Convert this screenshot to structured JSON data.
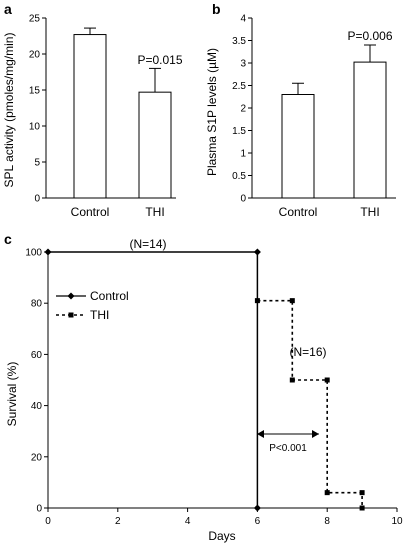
{
  "chart_data": [
    {
      "panel": "a",
      "type": "bar",
      "categories": [
        "Control",
        "THI"
      ],
      "values": [
        22.7,
        14.7
      ],
      "errors": [
        0.9,
        3.3
      ],
      "ylabel": "SPL activity (pmoles/mg/min)",
      "ylim": [
        0,
        25
      ],
      "yticks": [
        "0",
        "5",
        "10",
        "15",
        "20",
        "25"
      ],
      "annotations": [
        "P=0.015"
      ]
    },
    {
      "panel": "b",
      "type": "bar",
      "categories": [
        "Control",
        "THI"
      ],
      "values": [
        2.3,
        3.02
      ],
      "errors": [
        0.25,
        0.38
      ],
      "ylabel": "Plasma S1P levels (µM)",
      "ylim": [
        0,
        4
      ],
      "yticks": [
        "0",
        "0.5",
        "1",
        "1.5",
        "2",
        "2.5",
        "3",
        "3.5",
        "4"
      ],
      "annotations": [
        "P=0.006"
      ]
    },
    {
      "panel": "c",
      "type": "line",
      "xlabel": "Days",
      "ylabel": "Survival (%)",
      "xlim": [
        0,
        10
      ],
      "ylim": [
        0,
        100
      ],
      "xticks": [
        "0",
        "2",
        "4",
        "6",
        "8",
        "10"
      ],
      "yticks": [
        "0",
        "20",
        "40",
        "60",
        "80",
        "100"
      ],
      "series": [
        {
          "name": "Control",
          "style": "solid",
          "x": [
            0,
            6,
            6
          ],
          "y": [
            100,
            100,
            0
          ]
        },
        {
          "name": "THI",
          "style": "dashed",
          "x": [
            6,
            7,
            7,
            8,
            8,
            9,
            9
          ],
          "y": [
            81,
            81,
            50,
            50,
            6,
            6,
            0
          ]
        }
      ],
      "legend": "top-left",
      "annotations": [
        "(N=14)",
        "(N=16)",
        "P<0.001"
      ]
    }
  ]
}
